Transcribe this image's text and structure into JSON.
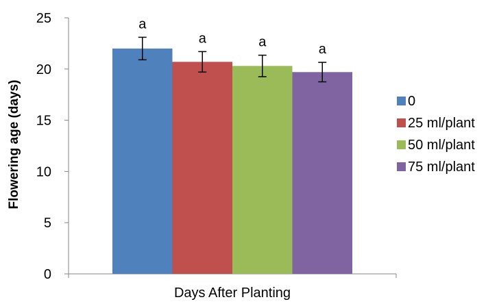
{
  "chart_data": {
    "type": "bar",
    "categories": [
      "Days After Planting"
    ],
    "series": [
      {
        "name": "0",
        "values": [
          22.0
        ],
        "error": [
          1.1
        ],
        "label": "a",
        "color": "#4f81bd"
      },
      {
        "name": "25 ml/plant",
        "values": [
          20.7
        ],
        "error": [
          1.0
        ],
        "label": "a",
        "color": "#c0504d"
      },
      {
        "name": "50 ml/plant",
        "values": [
          20.3
        ],
        "error": [
          1.05
        ],
        "label": "a",
        "color": "#9bbb59"
      },
      {
        "name": "75 ml/plant",
        "values": [
          19.7
        ],
        "error": [
          0.95
        ],
        "label": "a",
        "color": "#8064a2"
      }
    ],
    "xlabel": "Days After Planting",
    "ylabel": "Flowering age (days)",
    "ylim": [
      0,
      25
    ],
    "yticks": [
      0,
      5,
      10,
      15,
      20,
      25
    ],
    "grid": false,
    "legend": "right"
  }
}
